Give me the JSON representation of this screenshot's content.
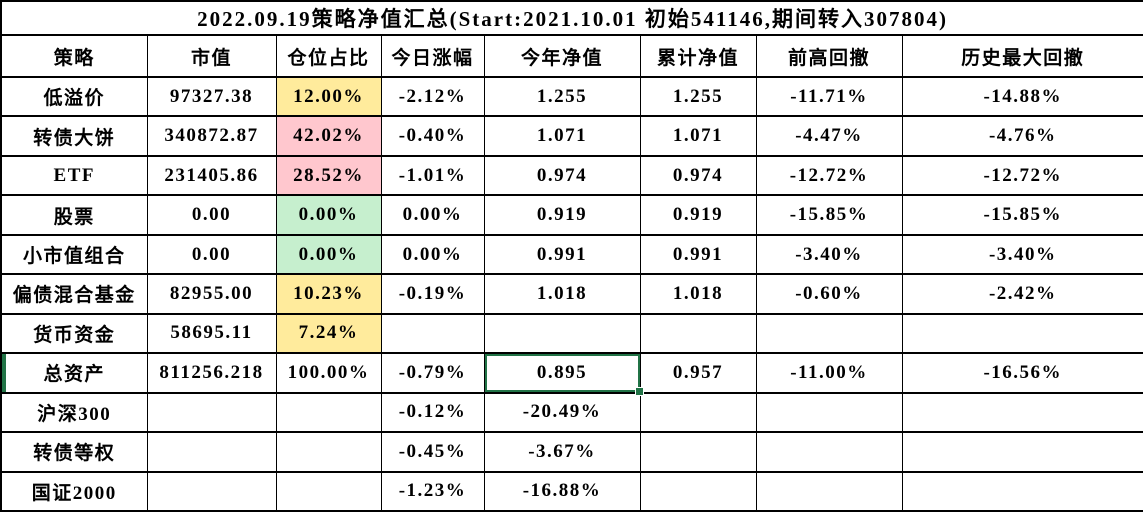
{
  "title": "2022.09.19策略净值汇总(Start:2021.10.01 初始541146,期间转入307804)",
  "columns": [
    "策略",
    "市值",
    "仓位占比",
    "今日涨幅",
    "今年净值",
    "累计净值",
    "前高回撤",
    "历史最大回撤"
  ],
  "colors": {
    "position_warn_bg": "#FFEB9C",
    "position_warn_text": "#9C6500",
    "position_high_bg": "#FFC7CE",
    "position_high_text": "#9C0006",
    "position_zero_bg": "#C6EFCE",
    "position_zero_text": "#006100",
    "selection_border": "#217346",
    "grid_line": "#000000"
  },
  "selected_cell": {
    "row": "总资产",
    "column": "今年净值",
    "value": "0.895"
  },
  "rows": [
    {
      "name": "低溢价",
      "cells": [
        "97327.38",
        {
          "text": "12.00%",
          "style": "neutral"
        },
        "-2.12%",
        "1.255",
        "1.255",
        "-11.71%",
        "-14.88%"
      ]
    },
    {
      "name": "转债大饼",
      "cells": [
        "340872.87",
        {
          "text": "42.02%",
          "style": "bad"
        },
        "-0.40%",
        "1.071",
        "1.071",
        "-4.47%",
        "-4.76%"
      ]
    },
    {
      "name": "ETF",
      "cells": [
        "231405.86",
        {
          "text": "28.52%",
          "style": "bad"
        },
        "-1.01%",
        "0.974",
        "0.974",
        "-12.72%",
        "-12.72%"
      ]
    },
    {
      "name": "股票",
      "cells": [
        "0.00",
        {
          "text": "0.00%",
          "style": "good"
        },
        "0.00%",
        "0.919",
        "0.919",
        "-15.85%",
        "-15.85%"
      ]
    },
    {
      "name": "小市值组合",
      "cells": [
        "0.00",
        {
          "text": "0.00%",
          "style": "good"
        },
        "0.00%",
        "0.991",
        "0.991",
        "-3.40%",
        "-3.40%"
      ]
    },
    {
      "name": "偏债混合基金",
      "cells": [
        "82955.00",
        {
          "text": "10.23%",
          "style": "neutral"
        },
        "-0.19%",
        "1.018",
        "1.018",
        "-0.60%",
        "-2.42%"
      ]
    },
    {
      "name": "货币资金",
      "cells": [
        "58695.11",
        {
          "text": "7.24%",
          "style": "neutral"
        },
        "",
        "",
        "",
        "",
        ""
      ]
    },
    {
      "name": "总资产",
      "row_indicator": true,
      "cells": [
        "811256.218",
        "100.00%",
        "-0.79%",
        {
          "text": "0.895",
          "style": "selected"
        },
        "0.957",
        "-11.00%",
        "-16.56%"
      ]
    },
    {
      "name": "沪深300",
      "cells": [
        "",
        "",
        "-0.12%",
        "-20.49%",
        "",
        "",
        ""
      ]
    },
    {
      "name": "转债等权",
      "cells": [
        "",
        "",
        "-0.45%",
        "-3.67%",
        "",
        "",
        ""
      ]
    },
    {
      "name": "国证2000",
      "cells": [
        "",
        "",
        "-1.23%",
        "-16.88%",
        "",
        "",
        ""
      ]
    }
  ]
}
